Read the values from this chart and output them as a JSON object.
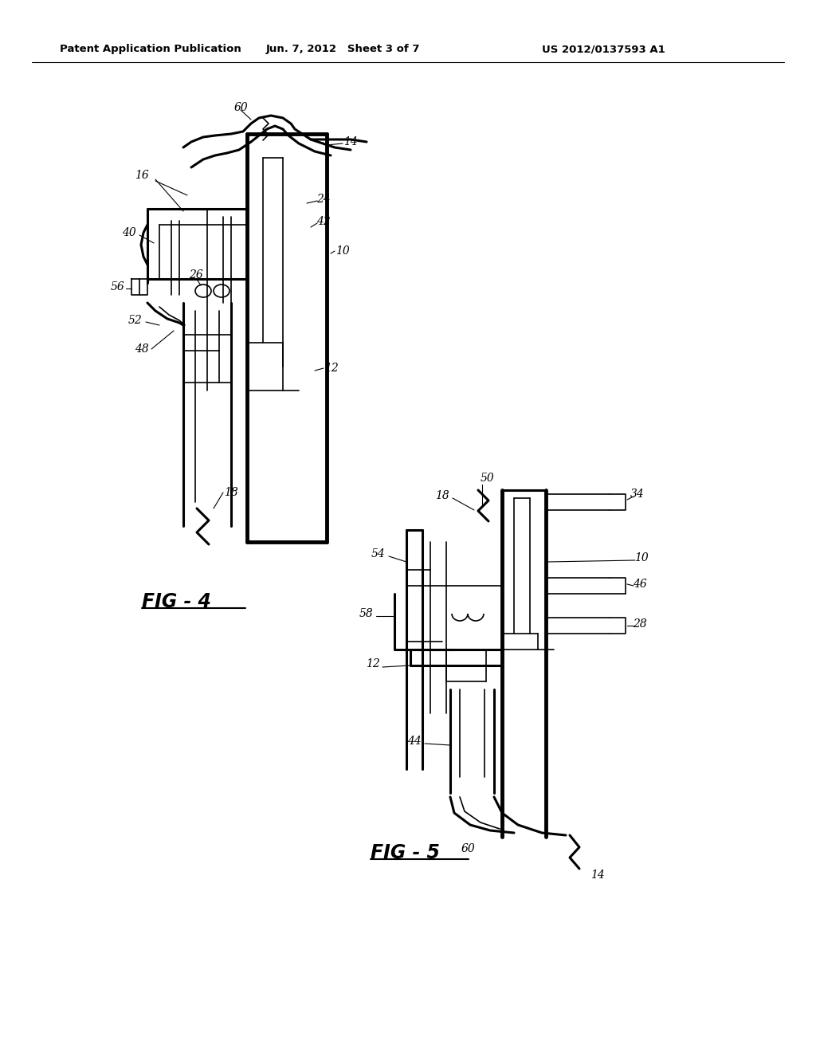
{
  "header_left": "Patent Application Publication",
  "header_center": "Jun. 7, 2012   Sheet 3 of 7",
  "header_right": "US 2012/0137593 A1",
  "fig4_label": "FIG - 4",
  "fig5_label": "FIG - 5",
  "background": "#ffffff",
  "line_color": "#000000"
}
